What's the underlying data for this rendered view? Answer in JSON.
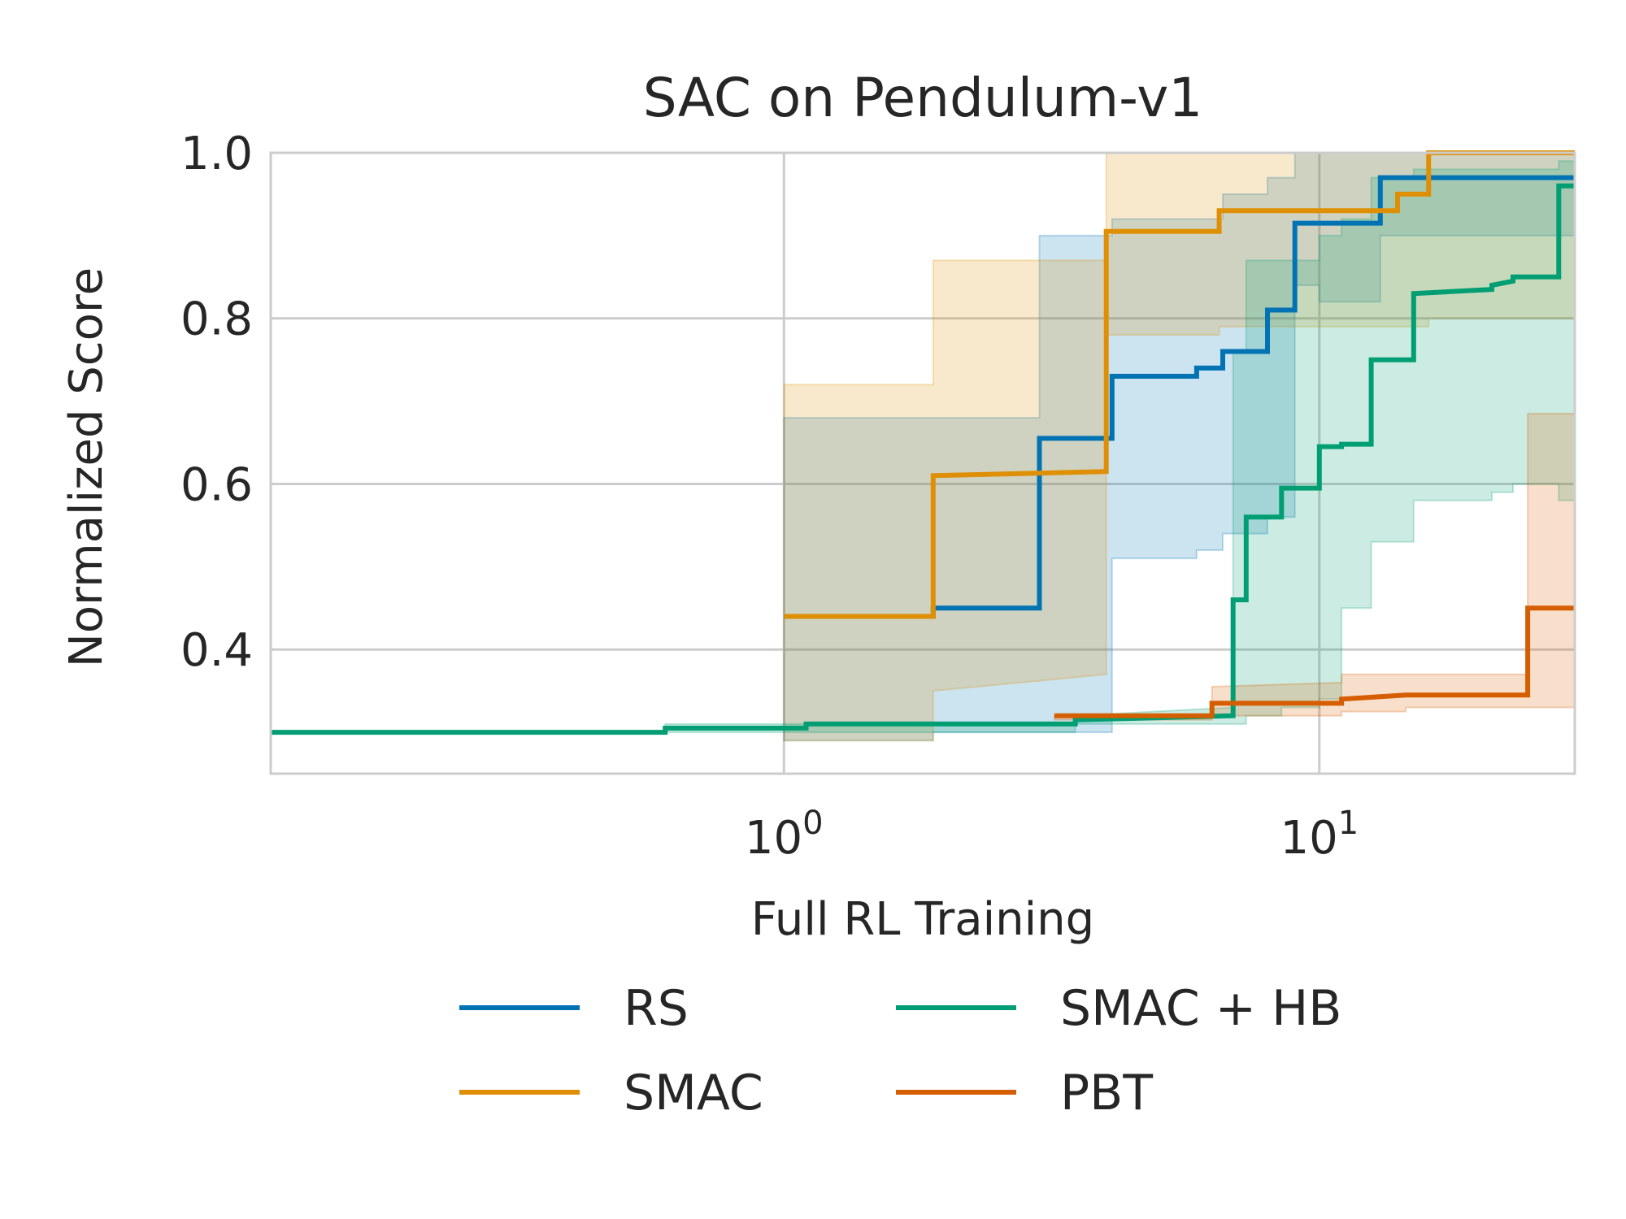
{
  "chart_data": {
    "type": "line",
    "title": "SAC on Pendulum-v1",
    "xlabel": "Full RL Training",
    "ylabel": "Normalized Score",
    "xscale": "log",
    "xlim": [
      0.11,
      30
    ],
    "ylim": [
      0.25,
      1.0
    ],
    "xticks": [
      {
        "value": 1,
        "base": "10",
        "exp": "0"
      },
      {
        "value": 10,
        "base": "10",
        "exp": "1"
      }
    ],
    "yticks": [
      {
        "value": 0.4,
        "label": "0.4"
      },
      {
        "value": 0.6,
        "label": "0.6"
      },
      {
        "value": 0.8,
        "label": "0.8"
      },
      {
        "value": 1.0,
        "label": "1.0"
      }
    ],
    "grid": true,
    "legend": {
      "position": "bottom-center",
      "columns": 2
    },
    "series": [
      {
        "name": "RS",
        "color": "#0173b2",
        "x": [
          1.0,
          1.9,
          1.9,
          3.0,
          3.0,
          4.1,
          4.1,
          5.9,
          5.9,
          6.6,
          6.6,
          8.0,
          8.0,
          9.0,
          9.0,
          10.0,
          10.0,
          13.0,
          13.0,
          30.0
        ],
        "y": [
          0.44,
          0.44,
          0.45,
          0.45,
          0.655,
          0.655,
          0.73,
          0.73,
          0.74,
          0.74,
          0.76,
          0.76,
          0.81,
          0.81,
          0.915,
          0.915,
          0.915,
          0.915,
          0.97,
          0.97
        ],
        "band_upper": [
          0.68,
          0.68,
          0.68,
          0.68,
          0.9,
          0.9,
          0.92,
          0.92,
          0.92,
          0.92,
          0.95,
          0.95,
          0.97,
          0.97,
          1.0,
          1.0,
          1.0,
          1.0,
          1.0,
          1.0
        ],
        "band_lower": [
          0.29,
          0.29,
          0.3,
          0.3,
          0.3,
          0.3,
          0.51,
          0.51,
          0.52,
          0.52,
          0.54,
          0.54,
          0.56,
          0.56,
          0.84,
          0.84,
          0.82,
          0.82,
          0.9,
          0.9
        ]
      },
      {
        "name": "SMAC",
        "color": "#de8f05",
        "x": [
          1.0,
          1.9,
          1.9,
          4.0,
          4.0,
          6.5,
          6.5,
          14.0,
          14.0,
          16.0,
          16.0,
          30.0
        ],
        "y": [
          0.44,
          0.44,
          0.61,
          0.615,
          0.905,
          0.905,
          0.93,
          0.93,
          0.95,
          0.95,
          1.0,
          1.0
        ],
        "band_upper": [
          0.72,
          0.72,
          0.87,
          0.87,
          1.0,
          1.0,
          1.0,
          1.0,
          1.0,
          1.0,
          1.0,
          1.0
        ],
        "band_lower": [
          0.29,
          0.29,
          0.35,
          0.37,
          0.78,
          0.78,
          0.79,
          0.79,
          0.79,
          0.79,
          0.8,
          0.8
        ]
      },
      {
        "name": "SMAC + HB",
        "color": "#029e73",
        "x": [
          0.11,
          0.6,
          0.6,
          1.1,
          1.1,
          3.5,
          3.5,
          6.9,
          6.9,
          7.3,
          7.3,
          8.5,
          8.5,
          10.0,
          10.0,
          11.0,
          11.0,
          12.5,
          12.5,
          15.0,
          15.0,
          21.0,
          21.0,
          23.0,
          23.0,
          28.0,
          28.0,
          30.0
        ],
        "y": [
          0.3,
          0.3,
          0.305,
          0.305,
          0.31,
          0.31,
          0.315,
          0.32,
          0.46,
          0.46,
          0.56,
          0.56,
          0.595,
          0.595,
          0.645,
          0.645,
          0.648,
          0.648,
          0.75,
          0.75,
          0.83,
          0.835,
          0.84,
          0.845,
          0.85,
          0.85,
          0.96,
          0.96
        ],
        "band_upper": [
          0.3,
          0.3,
          0.31,
          0.31,
          0.31,
          0.31,
          0.32,
          0.33,
          0.76,
          0.76,
          0.87,
          0.87,
          0.87,
          0.87,
          0.9,
          0.9,
          0.92,
          0.92,
          0.97,
          0.97,
          0.98,
          0.98,
          0.98,
          0.98,
          0.98,
          0.98,
          0.99,
          0.99
        ],
        "band_lower": [
          0.3,
          0.3,
          0.3,
          0.3,
          0.3,
          0.3,
          0.31,
          0.31,
          0.31,
          0.31,
          0.32,
          0.32,
          0.33,
          0.33,
          0.34,
          0.34,
          0.45,
          0.45,
          0.53,
          0.53,
          0.58,
          0.58,
          0.59,
          0.59,
          0.6,
          0.6,
          0.58,
          0.58
        ]
      },
      {
        "name": "PBT",
        "color": "#d55e00",
        "x": [
          3.2,
          6.3,
          6.3,
          11.0,
          11.0,
          14.5,
          14.5,
          24.5,
          24.5,
          30.0
        ],
        "y": [
          0.32,
          0.32,
          0.335,
          0.335,
          0.34,
          0.345,
          0.345,
          0.345,
          0.45,
          0.45
        ],
        "band_upper": [
          0.32,
          0.32,
          0.355,
          0.36,
          0.37,
          0.37,
          0.37,
          0.37,
          0.685,
          0.685
        ],
        "band_lower": [
          0.315,
          0.315,
          0.32,
          0.32,
          0.325,
          0.325,
          0.33,
          0.33,
          0.33,
          0.33
        ]
      }
    ]
  }
}
